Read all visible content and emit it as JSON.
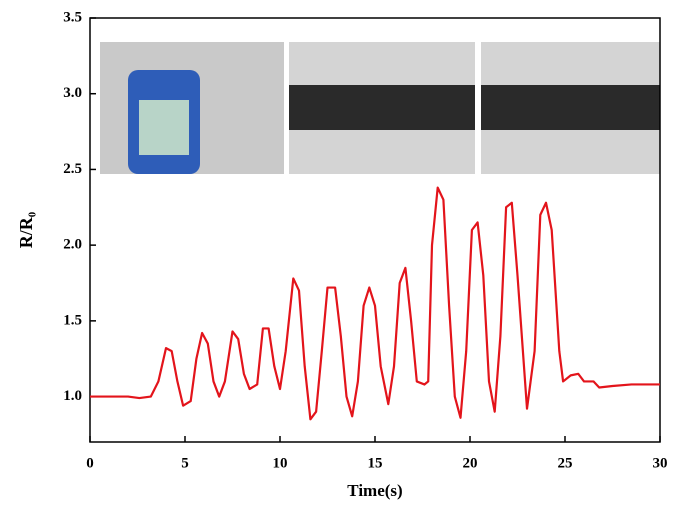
{
  "chart_data": {
    "type": "line",
    "xlabel": "Time(s)",
    "ylabel": "R/R₀",
    "x": [
      0,
      1,
      2,
      2.6,
      3.2,
      3.6,
      4.0,
      4.3,
      4.6,
      4.9,
      5.3,
      5.6,
      5.9,
      6.2,
      6.5,
      6.8,
      7.1,
      7.5,
      7.8,
      8.1,
      8.4,
      8.8,
      9.1,
      9.4,
      9.7,
      10.0,
      10.3,
      10.7,
      11.0,
      11.3,
      11.6,
      11.9,
      12.2,
      12.5,
      12.9,
      13.2,
      13.5,
      13.8,
      14.1,
      14.4,
      14.7,
      15.0,
      15.3,
      15.7,
      16.0,
      16.3,
      16.6,
      16.9,
      17.2,
      17.6,
      17.8,
      18.0,
      18.3,
      18.6,
      18.9,
      19.2,
      19.5,
      19.8,
      20.1,
      20.4,
      20.7,
      21.0,
      21.3,
      21.6,
      21.9,
      22.2,
      22.5,
      23.0,
      23.4,
      23.7,
      24.0,
      24.3,
      24.7,
      24.9,
      25.3,
      25.7,
      26.0,
      26.5,
      26.8,
      27.5,
      28.5,
      30
    ],
    "series": [
      {
        "color": "#e3141b",
        "values": [
          1.0,
          1.0,
          1.0,
          0.99,
          1.0,
          1.1,
          1.32,
          1.3,
          1.1,
          0.94,
          0.97,
          1.25,
          1.42,
          1.35,
          1.1,
          1.0,
          1.1,
          1.43,
          1.38,
          1.15,
          1.05,
          1.08,
          1.45,
          1.45,
          1.2,
          1.05,
          1.3,
          1.78,
          1.7,
          1.2,
          0.85,
          0.9,
          1.3,
          1.72,
          1.72,
          1.4,
          1.0,
          0.87,
          1.1,
          1.6,
          1.72,
          1.6,
          1.2,
          0.95,
          1.2,
          1.75,
          1.85,
          1.5,
          1.1,
          1.08,
          1.1,
          2.0,
          2.38,
          2.3,
          1.6,
          1.0,
          0.86,
          1.3,
          2.1,
          2.15,
          1.8,
          1.1,
          0.9,
          1.4,
          2.25,
          2.28,
          1.8,
          0.92,
          1.3,
          2.2,
          2.28,
          2.1,
          1.3,
          1.1,
          1.14,
          1.15,
          1.1,
          1.1,
          1.06,
          1.07,
          1.08,
          1.08
        ]
      }
    ],
    "xlim": [
      0,
      30
    ],
    "xticks": [
      0,
      5,
      10,
      15,
      20,
      25,
      30
    ],
    "ylim": [
      0.7,
      3.5
    ],
    "yticks": [
      {
        "value": 1.0,
        "label": "1.0"
      },
      1.5,
      {
        "value": 2.0,
        "label": "2.0"
      },
      2.5,
      {
        "value": 3.0,
        "label": "3.0"
      },
      3.5
    ]
  }
}
